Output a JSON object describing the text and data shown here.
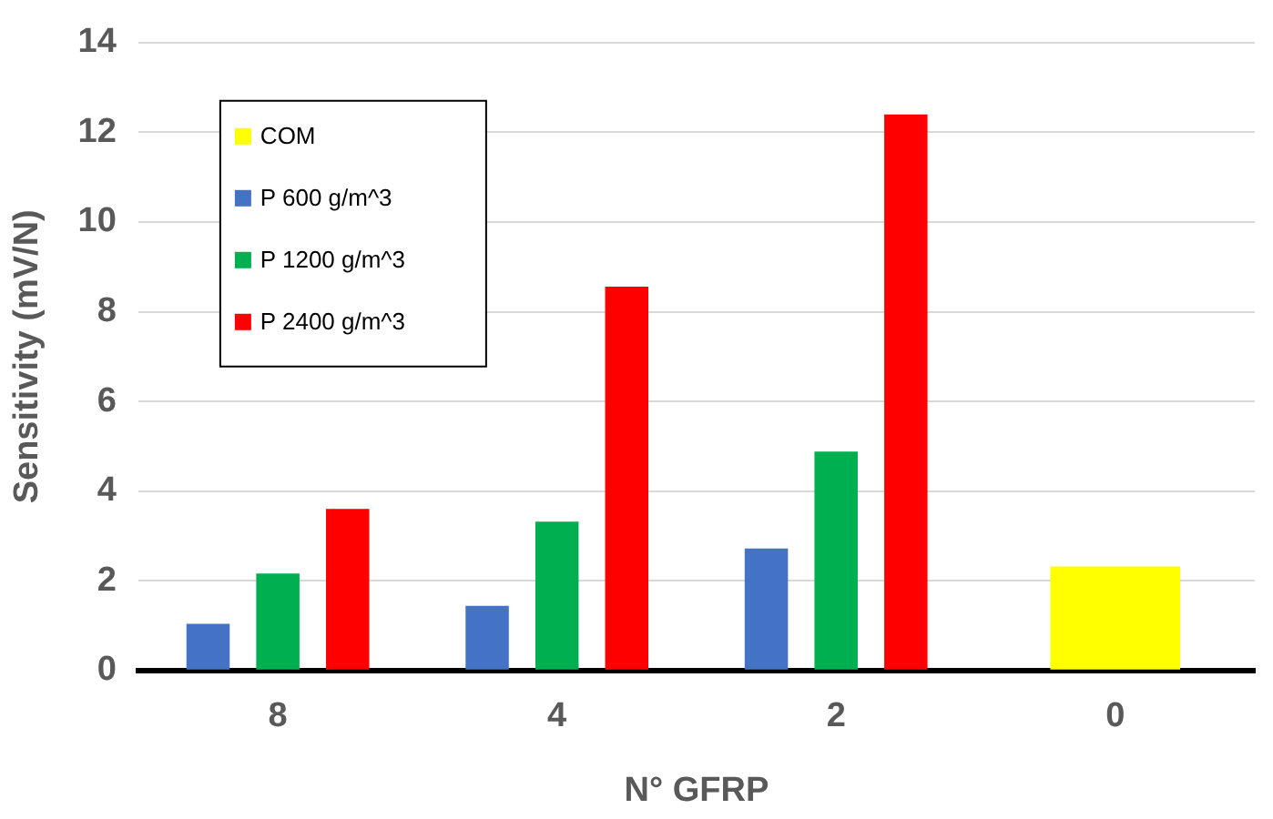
{
  "chart_data": {
    "type": "bar",
    "xlabel": "N° GFRP",
    "ylabel": "Sensitivity (mV/N)",
    "categories": [
      "8",
      "4",
      "2",
      "0"
    ],
    "series": [
      {
        "name": "COM",
        "color": "#ffff00",
        "values": [
          null,
          null,
          null,
          2.32
        ]
      },
      {
        "name": "P 600 g/m^3",
        "color": "#4472c4",
        "values": [
          1.04,
          1.44,
          2.72,
          null
        ]
      },
      {
        "name": "P 1200 g/m^3",
        "color": "#00b050",
        "values": [
          2.16,
          3.32,
          4.88,
          null
        ]
      },
      {
        "name": "P 2400 g/m^3",
        "color": "#ff0000",
        "values": [
          3.6,
          8.56,
          12.4,
          null
        ]
      }
    ],
    "ylim": [
      0,
      14
    ],
    "yticks": [
      0,
      2,
      4,
      6,
      8,
      10,
      12,
      14
    ],
    "grid": "y",
    "legend": "top left"
  }
}
